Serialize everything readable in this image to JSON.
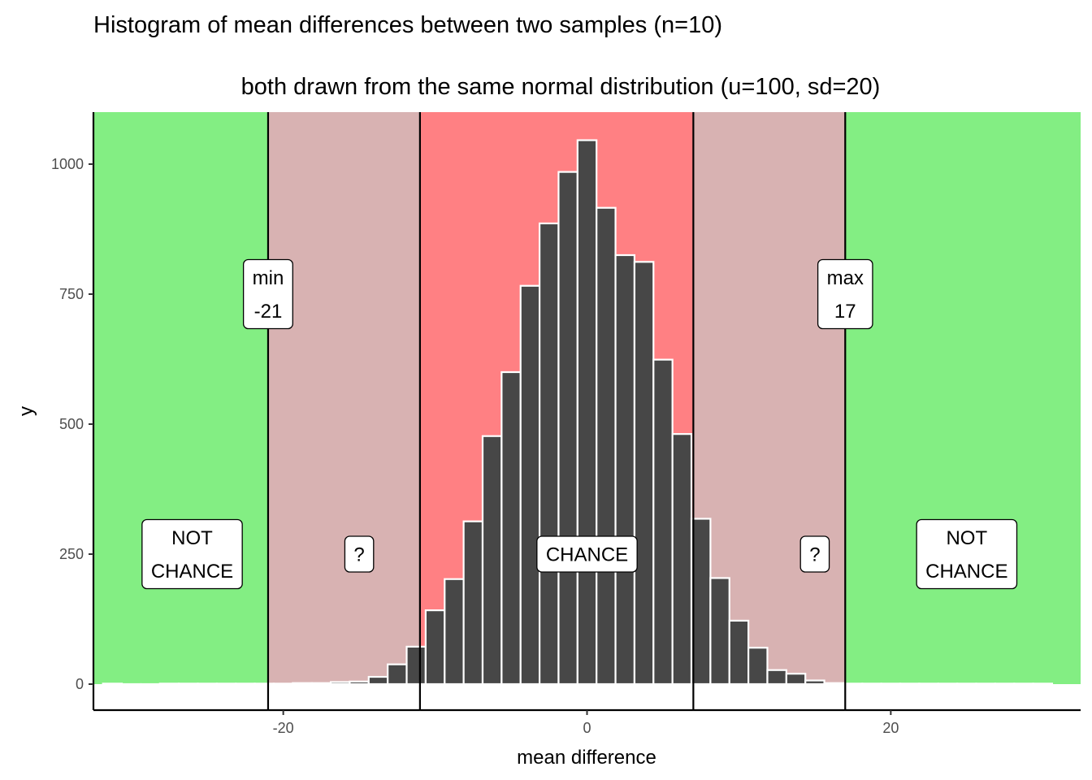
{
  "chart_data": {
    "type": "bar",
    "title": "Histogram of mean differences between two samples (n=10)",
    "subtitle": "both drawn from the same normal distribution (u=100, sd=20)",
    "xlabel": "mean difference",
    "ylabel": "y",
    "xlim": [
      -32.5,
      32.5
    ],
    "ylim": [
      -50,
      1100
    ],
    "x_ticks": [
      -20,
      0,
      20
    ],
    "x_tick_labels": [
      "-20",
      "0",
      "20"
    ],
    "y_ticks": [
      0,
      250,
      500,
      750,
      1000
    ],
    "y_tick_labels": [
      "0",
      "250",
      "500",
      "750",
      "1000"
    ],
    "grid": false,
    "bin_width": 1.25,
    "bins": [
      {
        "x": -31.25,
        "count": 1
      },
      {
        "x": -30.0,
        "count": 0
      },
      {
        "x": -28.75,
        "count": 0
      },
      {
        "x": -27.5,
        "count": 1
      },
      {
        "x": -26.25,
        "count": 1
      },
      {
        "x": -25.0,
        "count": 1
      },
      {
        "x": -23.75,
        "count": 1
      },
      {
        "x": -22.5,
        "count": 1
      },
      {
        "x": -21.25,
        "count": 1
      },
      {
        "x": -20.0,
        "count": 1
      },
      {
        "x": -18.75,
        "count": 2
      },
      {
        "x": -17.5,
        "count": 2
      },
      {
        "x": -16.25,
        "count": 4
      },
      {
        "x": -15.0,
        "count": 5
      },
      {
        "x": -13.75,
        "count": 14
      },
      {
        "x": -12.5,
        "count": 38
      },
      {
        "x": -11.25,
        "count": 72
      },
      {
        "x": -10.0,
        "count": 142
      },
      {
        "x": -8.75,
        "count": 202
      },
      {
        "x": -7.5,
        "count": 313
      },
      {
        "x": -6.25,
        "count": 477
      },
      {
        "x": -5.0,
        "count": 600
      },
      {
        "x": -3.75,
        "count": 766
      },
      {
        "x": -2.5,
        "count": 886
      },
      {
        "x": -1.25,
        "count": 985
      },
      {
        "x": 0.0,
        "count": 1046
      },
      {
        "x": 1.25,
        "count": 916
      },
      {
        "x": 2.5,
        "count": 825
      },
      {
        "x": 3.75,
        "count": 812
      },
      {
        "x": 5.0,
        "count": 624
      },
      {
        "x": 6.25,
        "count": 481
      },
      {
        "x": 7.5,
        "count": 318
      },
      {
        "x": 8.75,
        "count": 204
      },
      {
        "x": 10.0,
        "count": 122
      },
      {
        "x": 11.25,
        "count": 70
      },
      {
        "x": 12.5,
        "count": 27
      },
      {
        "x": 13.75,
        "count": 20
      },
      {
        "x": 15.0,
        "count": 7
      },
      {
        "x": 16.25,
        "count": 2
      },
      {
        "x": 17.5,
        "count": 1
      },
      {
        "x": 18.75,
        "count": 1
      },
      {
        "x": 20.0,
        "count": 1
      },
      {
        "x": 21.25,
        "count": 1
      },
      {
        "x": 22.5,
        "count": 1
      },
      {
        "x": 23.75,
        "count": 1
      },
      {
        "x": 25.0,
        "count": 1
      },
      {
        "x": 26.25,
        "count": 1
      },
      {
        "x": 27.5,
        "count": 1
      },
      {
        "x": 28.75,
        "count": 1
      },
      {
        "x": 30.0,
        "count": 1
      }
    ],
    "regions": [
      {
        "name": "not-chance-left",
        "x0": -32.5,
        "x1": -21,
        "color": "#83ee83"
      },
      {
        "name": "uncertain-left",
        "x0": -21,
        "x1": -11,
        "color": "#d8b2b2"
      },
      {
        "name": "chance",
        "x0": -11,
        "x1": 7,
        "color": "#ff8083"
      },
      {
        "name": "uncertain-right",
        "x0": 7,
        "x1": 17,
        "color": "#d8b2b2"
      },
      {
        "name": "not-chance-right",
        "x0": 17,
        "x1": 32.5,
        "color": "#83ee83"
      }
    ],
    "region_y_range": [
      0,
      1100
    ],
    "vlines": [
      -21,
      -11,
      7,
      17
    ],
    "annotations": [
      {
        "name": "min-label",
        "x": -21,
        "y": 750,
        "lines": [
          "min",
          "-21"
        ]
      },
      {
        "name": "max-label",
        "x": 17,
        "y": 750,
        "lines": [
          "max",
          "17"
        ]
      },
      {
        "name": "not-chance-left-label",
        "x": -26,
        "y": 250,
        "lines": [
          "NOT",
          "CHANCE"
        ]
      },
      {
        "name": "question-left-label",
        "x": -15,
        "y": 250,
        "lines": [
          "?"
        ]
      },
      {
        "name": "chance-label",
        "x": 0,
        "y": 250,
        "lines": [
          "CHANCE"
        ]
      },
      {
        "name": "question-right-label",
        "x": 15,
        "y": 250,
        "lines": [
          "?"
        ]
      },
      {
        "name": "not-chance-right-label",
        "x": 25,
        "y": 250,
        "lines": [
          "NOT",
          "CHANCE"
        ]
      }
    ],
    "bar_fill": "#474747",
    "bar_stroke": "#ffffff"
  }
}
